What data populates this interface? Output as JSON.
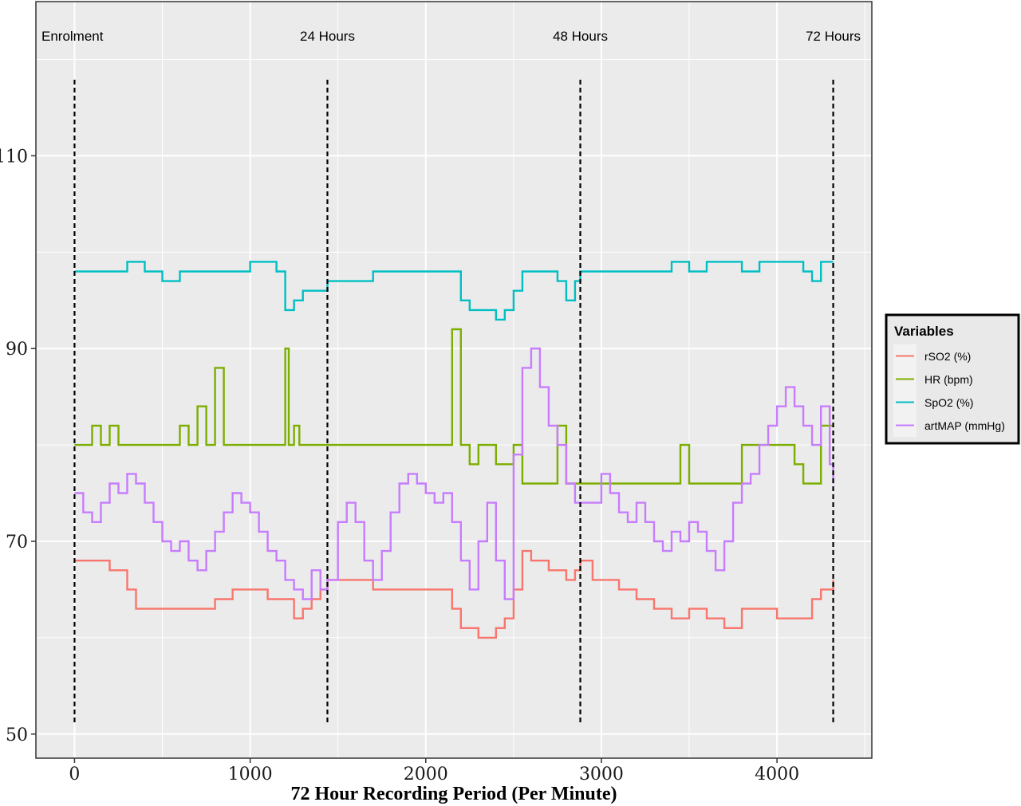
{
  "chart_data": {
    "type": "line",
    "title": "",
    "xlabel": "72 Hour Recording Period (Per Minute)",
    "ylabel": "",
    "xlim": [
      -220,
      4540
    ],
    "ylim": [
      47.5,
      126
    ],
    "x_ticks": [
      0,
      1000,
      2000,
      3000,
      4000
    ],
    "x_tick_labels": [
      "0",
      "1000",
      "2000",
      "3000",
      "4000"
    ],
    "y_ticks": [
      50,
      70,
      90,
      110
    ],
    "y_tick_labels": [
      "50",
      "70",
      "90",
      "110"
    ],
    "grid": true,
    "legend_position": "right",
    "legend_title": "Variables",
    "vlines": [
      {
        "x": 0,
        "label": "Enrolment"
      },
      {
        "x": 1440,
        "label": "24 Hours"
      },
      {
        "x": 2880,
        "label": "48 Hours"
      },
      {
        "x": 4320,
        "label": "72 Hours"
      }
    ],
    "series": [
      {
        "name": "rSO2 (%)",
        "color": "#F8766D",
        "x": [
          0,
          100,
          200,
          250,
          300,
          350,
          500,
          700,
          760,
          800,
          900,
          1000,
          1100,
          1200,
          1250,
          1300,
          1350,
          1400,
          1440,
          1500,
          1700,
          1900,
          2100,
          2150,
          2200,
          2250,
          2300,
          2350,
          2400,
          2450,
          2500,
          2550,
          2600,
          2700,
          2800,
          2850,
          2880,
          2950,
          3100,
          3200,
          3300,
          3400,
          3500,
          3600,
          3700,
          3800,
          3900,
          4000,
          4100,
          4150,
          4200,
          4250,
          4320
        ],
        "y": [
          68,
          68,
          67,
          67,
          65,
          63,
          63,
          63,
          63,
          64,
          65,
          65,
          64,
          64,
          62,
          63,
          64,
          65,
          66,
          66,
          65,
          65,
          65,
          63,
          61,
          61,
          60,
          60,
          61,
          62,
          65,
          69,
          68,
          67,
          66,
          67,
          68,
          66,
          65,
          64,
          63,
          62,
          63,
          62,
          61,
          63,
          63,
          62,
          62,
          62,
          64,
          65,
          66
        ]
      },
      {
        "name": "HR (bpm)",
        "color": "#7CAE00",
        "x": [
          0,
          50,
          100,
          150,
          200,
          250,
          300,
          400,
          500,
          600,
          650,
          700,
          750,
          800,
          850,
          900,
          1000,
          1100,
          1150,
          1180,
          1200,
          1220,
          1250,
          1280,
          1300,
          1350,
          1440,
          1600,
          1800,
          2000,
          2100,
          2130,
          2150,
          2200,
          2250,
          2300,
          2400,
          2500,
          2550,
          2600,
          2650,
          2700,
          2750,
          2800,
          2850,
          2880,
          3000,
          3200,
          3400,
          3450,
          3500,
          3600,
          3800,
          4000,
          4100,
          4150,
          4200,
          4250,
          4320
        ],
        "y": [
          80,
          80,
          82,
          80,
          82,
          80,
          80,
          80,
          80,
          82,
          80,
          84,
          80,
          88,
          80,
          80,
          80,
          80,
          80,
          80,
          90,
          80,
          82,
          80,
          80,
          80,
          80,
          80,
          80,
          80,
          80,
          80,
          92,
          80,
          78,
          80,
          78,
          80,
          76,
          76,
          76,
          76,
          82,
          76,
          76,
          76,
          76,
          76,
          76,
          80,
          76,
          76,
          80,
          80,
          78,
          76,
          76,
          82,
          82
        ]
      },
      {
        "name": "SpO2 (%)",
        "color": "#00BFC4",
        "x": [
          0,
          100,
          200,
          300,
          400,
          500,
          600,
          700,
          800,
          900,
          1000,
          1100,
          1150,
          1200,
          1250,
          1300,
          1350,
          1440,
          1500,
          1600,
          1700,
          1800,
          1900,
          2000,
          2100,
          2150,
          2200,
          2250,
          2300,
          2350,
          2400,
          2450,
          2500,
          2550,
          2600,
          2700,
          2750,
          2800,
          2850,
          2880,
          3000,
          3100,
          3200,
          3300,
          3400,
          3500,
          3600,
          3700,
          3800,
          3900,
          4000,
          4100,
          4150,
          4200,
          4250,
          4320
        ],
        "y": [
          98,
          98,
          98,
          99,
          98,
          97,
          98,
          98,
          98,
          98,
          99,
          99,
          98,
          94,
          95,
          96,
          96,
          97,
          97,
          97,
          98,
          98,
          98,
          98,
          98,
          98,
          95,
          94,
          94,
          94,
          93,
          94,
          96,
          98,
          98,
          98,
          97,
          95,
          97,
          98,
          98,
          98,
          98,
          98,
          99,
          98,
          99,
          99,
          98,
          99,
          99,
          99,
          98,
          97,
          99,
          99
        ]
      },
      {
        "name": "artMAP (mmHg)",
        "color": "#C77CFF",
        "x": [
          0,
          50,
          100,
          150,
          200,
          250,
          300,
          350,
          400,
          450,
          500,
          550,
          600,
          650,
          700,
          750,
          800,
          850,
          900,
          950,
          1000,
          1050,
          1100,
          1150,
          1200,
          1250,
          1300,
          1350,
          1400,
          1440,
          1500,
          1550,
          1600,
          1650,
          1700,
          1750,
          1800,
          1850,
          1900,
          1950,
          2000,
          2050,
          2100,
          2150,
          2200,
          2250,
          2300,
          2350,
          2400,
          2450,
          2500,
          2550,
          2600,
          2650,
          2700,
          2750,
          2800,
          2850,
          2880,
          2950,
          3000,
          3050,
          3100,
          3150,
          3200,
          3250,
          3300,
          3350,
          3400,
          3450,
          3500,
          3550,
          3600,
          3650,
          3700,
          3750,
          3800,
          3850,
          3900,
          3950,
          4000,
          4050,
          4100,
          4150,
          4200,
          4250,
          4300,
          4320
        ],
        "y": [
          75,
          73,
          72,
          74,
          76,
          75,
          77,
          76,
          74,
          72,
          70,
          69,
          70,
          68,
          67,
          69,
          71,
          73,
          75,
          74,
          73,
          71,
          69,
          68,
          66,
          65,
          64,
          67,
          65,
          66,
          72,
          74,
          72,
          68,
          66,
          69,
          73,
          76,
          77,
          76,
          75,
          74,
          75,
          72,
          68,
          65,
          70,
          74,
          68,
          64,
          79,
          88,
          90,
          86,
          82,
          80,
          76,
          74,
          74,
          74,
          77,
          75,
          73,
          72,
          74,
          72,
          70,
          69,
          71,
          70,
          72,
          71,
          69,
          67,
          70,
          74,
          76,
          77,
          80,
          82,
          84,
          86,
          84,
          82,
          80,
          84,
          78,
          76
        ]
      }
    ]
  }
}
